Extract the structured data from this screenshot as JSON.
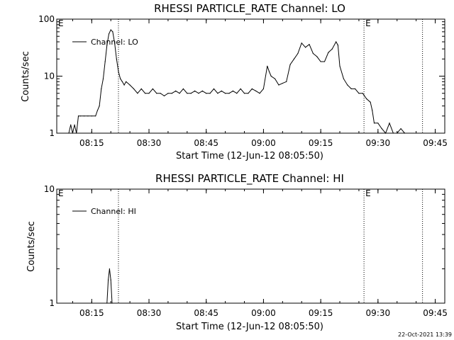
{
  "chart_data": [
    {
      "type": "line",
      "title": "RHESSI PARTICLE_RATE Channel: LO",
      "xlabel": "Start Time (12-Jun-12 08:05:50)",
      "ylabel": "Counts/sec",
      "y_scale": "log",
      "ylim": [
        1,
        100
      ],
      "y_ticks": [
        1,
        10,
        100
      ],
      "y_tick_labels": [
        "1",
        "10",
        "100"
      ],
      "xlim": [
        "08:05:50",
        "09:47:30"
      ],
      "x_ticks": [
        "08:15",
        "08:30",
        "08:45",
        "09:00",
        "09:15",
        "09:30",
        "09:45"
      ],
      "legend": {
        "label": "Channel: LO",
        "position": "top-left"
      },
      "markers": [
        {
          "x": "08:05:50",
          "label": "E",
          "dotted": false
        },
        {
          "x": "08:22:00",
          "label": "",
          "dotted": true
        },
        {
          "x": "09:26:20",
          "label": "E",
          "dotted": true
        },
        {
          "x": "09:41:40",
          "label": "",
          "dotted": true
        }
      ],
      "series": [
        {
          "name": "Channel: LO",
          "x": [
            "08:09:00",
            "08:09:30",
            "08:10:00",
            "08:10:30",
            "08:11:00",
            "08:11:30",
            "08:12:00",
            "08:13:00",
            "08:14:00",
            "08:15:00",
            "08:16:00",
            "08:16:30",
            "08:17:00",
            "08:17:30",
            "08:18:00",
            "08:18:30",
            "08:19:00",
            "08:19:30",
            "08:20:00",
            "08:20:30",
            "08:21:00",
            "08:21:30",
            "08:22:00",
            "08:22:30",
            "08:23:00",
            "08:23:30",
            "08:24:00",
            "08:25:00",
            "08:26:00",
            "08:27:00",
            "08:28:00",
            "08:29:00",
            "08:30:00",
            "08:31:00",
            "08:32:00",
            "08:33:00",
            "08:34:00",
            "08:35:00",
            "08:36:00",
            "08:37:00",
            "08:38:00",
            "08:39:00",
            "08:40:00",
            "08:41:00",
            "08:42:00",
            "08:43:00",
            "08:44:00",
            "08:45:00",
            "08:46:00",
            "08:47:00",
            "08:48:00",
            "08:49:00",
            "08:50:00",
            "08:51:00",
            "08:52:00",
            "08:53:00",
            "08:54:00",
            "08:55:00",
            "08:56:00",
            "08:57:00",
            "08:58:00",
            "08:59:00",
            "09:00:00",
            "09:01:00",
            "09:01:30",
            "09:02:00",
            "09:03:00",
            "09:04:00",
            "09:05:00",
            "09:06:00",
            "09:07:00",
            "09:08:00",
            "09:09:00",
            "09:10:00",
            "09:11:00",
            "09:12:00",
            "09:13:00",
            "09:14:00",
            "09:15:00",
            "09:16:00",
            "09:17:00",
            "09:18:00",
            "09:19:00",
            "09:19:30",
            "09:20:00",
            "09:21:00",
            "09:22:00",
            "09:23:00",
            "09:24:00",
            "09:25:00",
            "09:26:00",
            "09:27:00",
            "09:28:00",
            "09:28:30",
            "09:29:00",
            "09:30:00",
            "09:31:00",
            "09:32:00",
            "09:33:00",
            "09:34:00",
            "09:35:00",
            "09:36:00",
            "09:37:00"
          ],
          "values": [
            1,
            1.4,
            1,
            1.4,
            1,
            2,
            2,
            2,
            2,
            2,
            2,
            2.5,
            3,
            6,
            9,
            18,
            35,
            55,
            65,
            60,
            38,
            20,
            12,
            9,
            8,
            7,
            8,
            7,
            6,
            5,
            6,
            5,
            5,
            6,
            5,
            5,
            4.5,
            5,
            5,
            5.5,
            5,
            6,
            5,
            5,
            5.5,
            5,
            5.5,
            5,
            5,
            6,
            5,
            5.5,
            5,
            5,
            5.5,
            5,
            6,
            5,
            5,
            6,
            5.5,
            5,
            6,
            15,
            12,
            10,
            9,
            7,
            7.5,
            8,
            16,
            20,
            25,
            38,
            32,
            36,
            25,
            22,
            18,
            18,
            26,
            30,
            40,
            35,
            15,
            9,
            7,
            6,
            6,
            5,
            5,
            4,
            3.5,
            2.5,
            1.5,
            1.5,
            1.2,
            1,
            1.5,
            1,
            1,
            1.2,
            1
          ]
        }
      ]
    },
    {
      "type": "line",
      "title": "RHESSI PARTICLE_RATE Channel: HI",
      "xlabel": "Start Time (12-Jun-12 08:05:50)",
      "ylabel": "Counts/sec",
      "y_scale": "log",
      "ylim": [
        1,
        10
      ],
      "y_ticks": [
        1,
        10
      ],
      "y_tick_labels": [
        "1",
        "10"
      ],
      "xlim": [
        "08:05:50",
        "09:47:30"
      ],
      "x_ticks": [
        "08:15",
        "08:30",
        "08:45",
        "09:00",
        "09:15",
        "09:30",
        "09:45"
      ],
      "legend": {
        "label": "Channel: HI",
        "position": "top-left"
      },
      "markers": [
        {
          "x": "08:05:50",
          "label": "E",
          "dotted": false
        },
        {
          "x": "08:22:00",
          "label": "",
          "dotted": true
        },
        {
          "x": "09:26:20",
          "label": "E",
          "dotted": true
        },
        {
          "x": "09:41:40",
          "label": "",
          "dotted": true
        }
      ],
      "series": [
        {
          "name": "Channel: HI",
          "x": [
            "08:19:00",
            "08:19:20",
            "08:19:40",
            "08:20:00",
            "08:20:20"
          ],
          "values": [
            1,
            1.6,
            2,
            1.6,
            1
          ]
        }
      ]
    }
  ],
  "footer": {
    "timestamp": "22-Oct-2021 13:39"
  }
}
